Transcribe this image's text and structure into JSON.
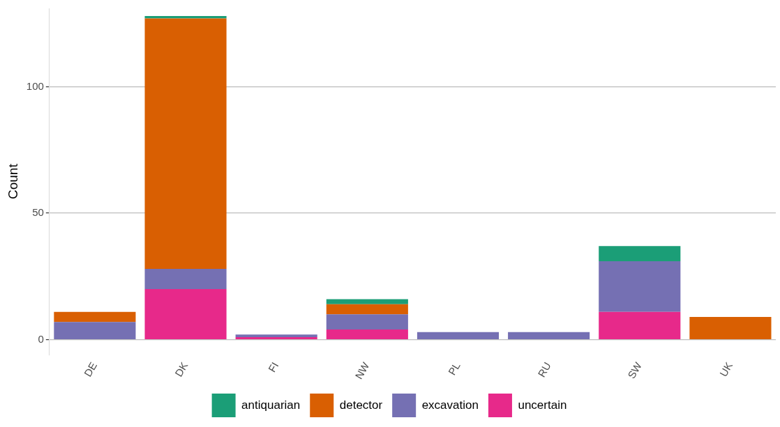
{
  "chart_data": {
    "type": "bar",
    "stacked": true,
    "ylabel": "Count",
    "categories": [
      "DE",
      "DK",
      "FI",
      "NW",
      "PL",
      "RU",
      "SW",
      "UK"
    ],
    "series": [
      {
        "name": "uncertain",
        "color": "#e7298a",
        "values": [
          0,
          20,
          1,
          4,
          0,
          0,
          11,
          0
        ]
      },
      {
        "name": "excavation",
        "color": "#7570b3",
        "values": [
          7,
          8,
          1,
          6,
          3,
          3,
          20,
          0
        ]
      },
      {
        "name": "detector",
        "color": "#d95f02",
        "values": [
          4,
          99,
          0,
          4,
          0,
          0,
          0,
          9
        ]
      },
      {
        "name": "antiquarian",
        "color": "#1b9e77",
        "values": [
          0,
          1,
          0,
          2,
          0,
          0,
          6,
          0
        ]
      }
    ],
    "ylim": [
      -6,
      131
    ],
    "yticks": [
      0,
      50,
      100
    ],
    "grid": "y",
    "legend": "bottom"
  }
}
